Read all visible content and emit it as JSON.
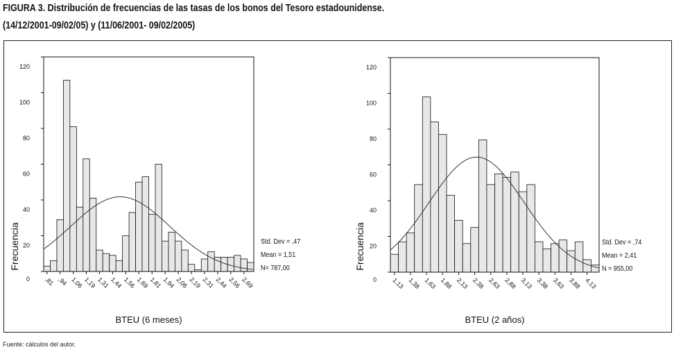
{
  "title_line1": "FIGURA 3. Distribución de frecuencias de las tasas de los bonos del Tesoro estadounidense.",
  "title_line2": "(14/12/2001-09/02/05) y (11/06/2001- 09/02/2005)",
  "footer": "Fuente: cálculos del autor.",
  "chart_data": [
    {
      "type": "bar",
      "subtype": "histogram",
      "xlabel": "BTEU (6 meses)",
      "ylabel": "Frecuencia",
      "ylim": [
        0,
        120
      ],
      "yticks": [
        "0",
        "20",
        "40",
        "60",
        "80",
        "100",
        "120"
      ],
      "first_bin_center": 0.8125,
      "bin_width": 0.0625,
      "xtick_labels": [
        ",81",
        ",94",
        "1,06",
        "1,19",
        "1,31",
        "1,44",
        "1,56",
        "1,69",
        "1,81",
        "1,94",
        "2,06",
        "2,19",
        "2,31",
        "2,44",
        "2,56",
        "2,69"
      ],
      "values": [
        3,
        6,
        29,
        107,
        81,
        36,
        63,
        41,
        12,
        10,
        9,
        6,
        20,
        33,
        50,
        53,
        32,
        60,
        17,
        22,
        17,
        12,
        4,
        1,
        7,
        11,
        8,
        8,
        8,
        9,
        7,
        5
      ],
      "normal_curve": {
        "mean": 1.51,
        "sd": 0.47,
        "n": 787
      },
      "stats": [
        "Std. Dev = ,47",
        "Mean = 1,51",
        "N= 787,00"
      ]
    },
    {
      "type": "bar",
      "subtype": "histogram",
      "xlabel": "BTEU (2 años)",
      "ylabel": "Frecuencia",
      "ylim": [
        0,
        120
      ],
      "yticks": [
        "0",
        "20",
        "40",
        "60",
        "80",
        "100",
        "120"
      ],
      "first_bin_center": 1.13,
      "bin_width": 0.125,
      "xtick_labels": [
        "1,13",
        "1,38",
        "1,63",
        "1,88",
        "2,13",
        "2,38",
        "2,63",
        "2,88",
        "3,13",
        "3,38",
        "3,63",
        "3,88",
        "4,13"
      ],
      "values": [
        10,
        17,
        22,
        49,
        98,
        84,
        77,
        43,
        29,
        16,
        25,
        74,
        49,
        55,
        53,
        56,
        45,
        49,
        17,
        13,
        16,
        18,
        12,
        17,
        7,
        4
      ],
      "normal_curve": {
        "mean": 2.41,
        "sd": 0.74,
        "n": 955
      },
      "stats": [
        "Std. Dev = ,74",
        "Mean = 2,41",
        "N = 955,00"
      ]
    }
  ],
  "colors": {
    "bar": "#e8e8e8",
    "stroke": "#111"
  }
}
